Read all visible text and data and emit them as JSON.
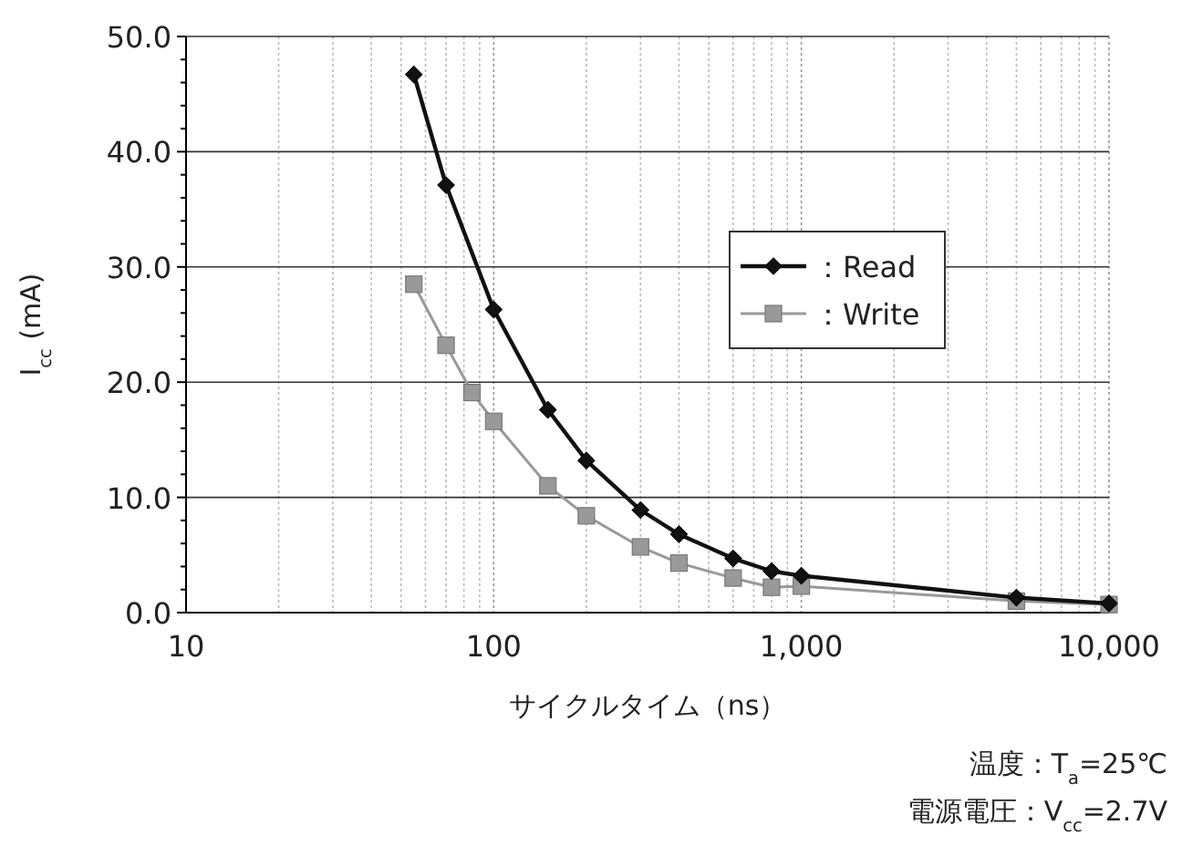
{
  "chart_data": {
    "type": "line",
    "xlabel": "サイクルタイム（ns）",
    "ylabel": "I$_{cc}$ (mA)",
    "log": "x",
    "grid": true,
    "legend": "center",
    "xlim": [
      10,
      10000
    ],
    "xticks": [
      10,
      {
        "value": 100,
        "label": "100"
      },
      {
        "value": 1000,
        "label": "1,000"
      },
      {
        "value": 10000,
        "label": "10,000"
      }
    ],
    "ylim": [
      0,
      50
    ],
    "yticks": [
      {
        "value": 0,
        "label": "0.0"
      },
      {
        "value": 10,
        "label": "10.0"
      },
      {
        "value": 20,
        "label": "20.0"
      },
      {
        "value": 30,
        "label": "30.0"
      },
      {
        "value": 40,
        "label": "40.0"
      },
      {
        "value": 50,
        "label": "50.0"
      }
    ],
    "series": [
      {
        "name": "：Read",
        "color": "#111111",
        "marker": "diamond",
        "x": [
          55,
          70,
          100,
          150,
          200,
          300,
          400,
          600,
          800,
          1000,
          5000,
          10000
        ],
        "values": [
          46.7,
          37.1,
          26.3,
          17.6,
          13.2,
          8.9,
          6.8,
          4.7,
          3.6,
          3.2,
          1.3,
          0.8
        ]
      },
      {
        "name": "：Write",
        "color": "#999999",
        "marker": "square",
        "x": [
          55,
          70,
          85,
          100,
          150,
          200,
          300,
          400,
          600,
          800,
          1000,
          5000,
          10000
        ],
        "values": [
          28.5,
          23.2,
          19.1,
          16.6,
          11.0,
          8.4,
          5.7,
          4.3,
          3.0,
          2.2,
          2.3,
          1.0,
          0.7
        ]
      }
    ],
    "annotations": [
      "温度：T$_{a}$=25℃",
      "電源電圧：V$_{cc}$=2.7V"
    ]
  }
}
